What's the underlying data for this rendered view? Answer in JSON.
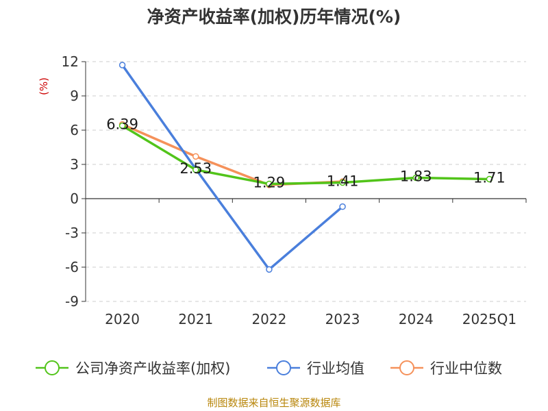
{
  "title": "净资产收益率(加权)历年情况(%)",
  "source": "制图数据来自恒生聚源数据库",
  "chart_data": {
    "type": "line",
    "title": "净资产收益率(加权)历年情况(%)",
    "xlabel": "",
    "ylabel": "(%)",
    "categories": [
      "2020",
      "2021",
      "2022",
      "2023",
      "2024",
      "2025Q1"
    ],
    "yticks": [
      12,
      9,
      6,
      3,
      0,
      -3,
      -6,
      -9
    ],
    "ylim": [
      -9,
      12
    ],
    "grid": true,
    "legend_position": "bottom",
    "series": [
      {
        "name": "公司净资产收益率(加权)",
        "color": "#52c41a",
        "values": [
          6.39,
          2.53,
          1.29,
          1.41,
          1.83,
          1.71
        ],
        "labels": [
          "6.39",
          "2.53",
          "1.29",
          "1.41",
          "1.83",
          "1.71"
        ]
      },
      {
        "name": "行业均值",
        "color": "#4a7fdc",
        "values": [
          11.7,
          2.6,
          -6.2,
          -0.7,
          null,
          null
        ]
      },
      {
        "name": "行业中位数",
        "color": "#f5915a",
        "values": [
          6.5,
          3.7,
          1.2,
          1.5,
          null,
          null
        ]
      }
    ]
  }
}
